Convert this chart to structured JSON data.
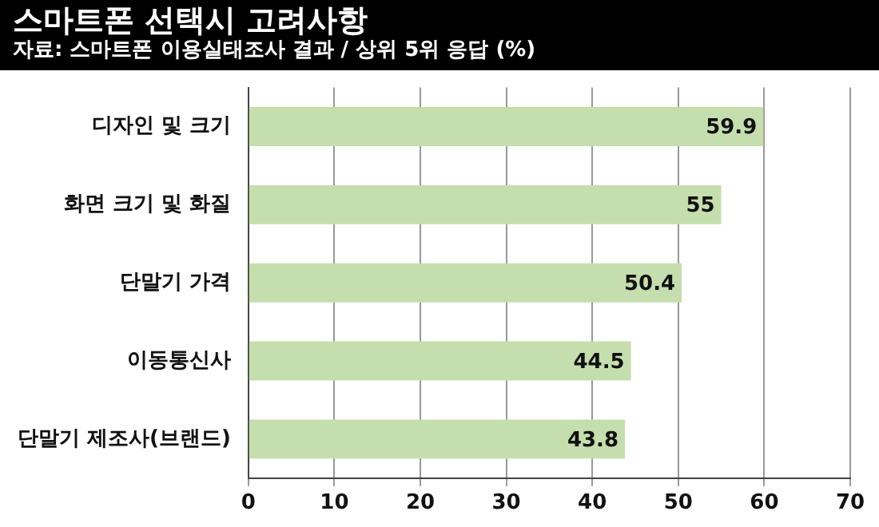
{
  "chart_data": {
    "type": "bar",
    "orientation": "horizontal",
    "title": "스마트폰 선택시 고려사항",
    "subtitle": "자료: 스마트폰 이용실태조사 결과 / 상위 5위 응답 (%)",
    "categories": [
      "디자인 및 크기",
      "화면 크기 및 화질",
      "단말기 가격",
      "이동통신사",
      "단말기 제조사(브랜드)"
    ],
    "values": [
      59.9,
      55,
      50.4,
      44.5,
      43.8
    ],
    "color": "#c5dead",
    "xlim": [
      0,
      70
    ],
    "xticks": [
      0,
      10,
      20,
      30,
      40,
      50,
      60,
      70
    ],
    "grid": "x",
    "data_labels": true,
    "legend": false
  }
}
